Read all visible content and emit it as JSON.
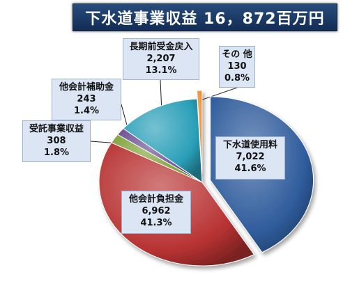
{
  "title": "下水道事業収益 16，872百万円",
  "chart_data": {
    "type": "pie",
    "title": "下水道事業収益 16，872百万円",
    "slices": [
      {
        "label": "下水道使用料",
        "value": 7022,
        "value_text": "7,022",
        "percent": "41.6%",
        "color": "#2f5c9c",
        "exploded": true
      },
      {
        "label": "他会計負担金",
        "value": 6962,
        "value_text": "6,962",
        "percent": "41.3%",
        "color": "#b83232",
        "exploded": false
      },
      {
        "label": "受託事業収益",
        "value": 308,
        "value_text": "308",
        "percent": "1.8%",
        "color": "#7fa23a",
        "exploded": false
      },
      {
        "label": "他会計補助金",
        "value": 243,
        "value_text": "243",
        "percent": "1.4%",
        "color": "#6b4e94",
        "exploded": false
      },
      {
        "label": "長期前受金戻入",
        "value": 2207,
        "value_text": "2,207",
        "percent": "13.1%",
        "color": "#2a9fb8",
        "exploded": false
      },
      {
        "label": "その 他",
        "value": 130,
        "value_text": "130",
        "percent": "0.8%",
        "color": "#f08a24",
        "exploded": true
      }
    ]
  }
}
